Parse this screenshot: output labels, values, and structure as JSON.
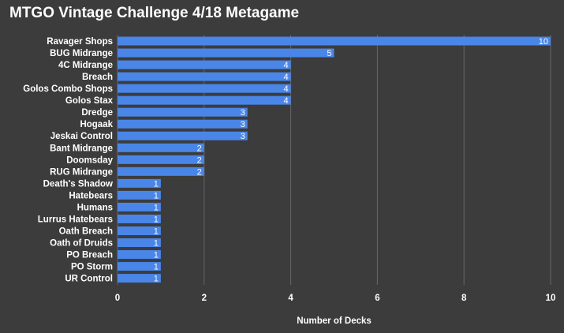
{
  "chart_data": {
    "type": "bar",
    "orientation": "horizontal",
    "title": "MTGO Vintage Challenge 4/18 Metagame",
    "xlabel": "Number of Decks",
    "ylabel": "",
    "categories": [
      "Ravager Shops",
      "BUG Midrange",
      "4C Midrange",
      "Breach",
      "Golos Combo Shops",
      "Golos Stax",
      "Dredge",
      "Hogaak",
      "Jeskai Control",
      "Bant Midrange",
      "Doomsday",
      "RUG Midrange",
      "Death's Shadow",
      "Hatebears",
      "Humans",
      "Lurrus Hatebears",
      "Oath Breach",
      "Oath of Druids",
      "PO Breach",
      "PO Storm",
      "UR Control"
    ],
    "values": [
      10,
      5,
      4,
      4,
      4,
      4,
      3,
      3,
      3,
      2,
      2,
      2,
      1,
      1,
      1,
      1,
      1,
      1,
      1,
      1,
      1
    ],
    "xlim": [
      0,
      10
    ],
    "xticks": [
      0,
      2,
      4,
      6,
      8,
      10
    ],
    "grid": "vertical",
    "legend": "none",
    "data_labels": true
  },
  "colors": {
    "background": "#3c3c3c",
    "bar": "#4a86e8",
    "grid": "#666666",
    "text": "#ffffff"
  }
}
